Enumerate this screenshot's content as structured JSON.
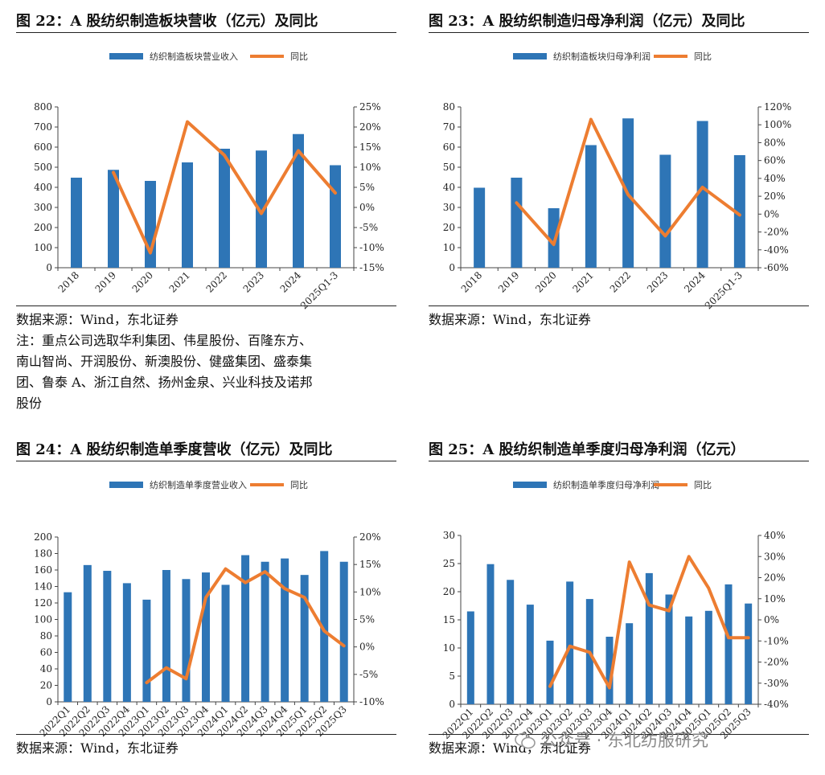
{
  "colors": {
    "bar": "#2E75B6",
    "line": "#ED7D31",
    "axis": "#444444"
  },
  "watermark": "公众号 · 东北纺服研究",
  "panels": [
    {
      "title": "图 22：A 股纺织制造板块营收（亿元）及同比",
      "source": "数据来源：Wind，东北证券",
      "note": [
        "注：重点公司选取华利集团、伟星股份、百隆东方、",
        "南山智尚、开润股份、新澳股份、健盛集团、盛泰集",
        "团、鲁泰 A、浙江自然、扬州金泉、兴业科技及诺邦",
        "股份"
      ],
      "chart_data": {
        "type": "bar+line",
        "categories": [
          "2018",
          "2019",
          "2020",
          "2021",
          "2022",
          "2023",
          "2024",
          "2025Q1-3"
        ],
        "bar_series": {
          "name": "纺织制造板块营业收入",
          "values": [
            448,
            487,
            432,
            524,
            592,
            583,
            665,
            510
          ]
        },
        "line_series": {
          "name": "同比",
          "values": [
            null,
            8.7,
            -11.3,
            21.3,
            13.0,
            -1.5,
            14.1,
            3.6
          ]
        },
        "y_left": {
          "min": 0,
          "max": 800,
          "step": 100,
          "ticks": [
            "0",
            "100",
            "200",
            "300",
            "400",
            "500",
            "600",
            "700",
            "800"
          ]
        },
        "y_right": {
          "min": -15,
          "max": 25,
          "step": 5,
          "ticks": [
            "-15%",
            "-10%",
            "-5%",
            "0%",
            "5%",
            "10%",
            "15%",
            "20%",
            "25%"
          ]
        },
        "x_rotated": true
      }
    },
    {
      "title": "图 23：A 股纺织制造归母净利润（亿元）及同比",
      "source": "数据来源：Wind，东北证券",
      "note": [],
      "chart_data": {
        "type": "bar+line",
        "categories": [
          "2018",
          "2019",
          "2020",
          "2021",
          "2022",
          "2023",
          "2024",
          "2025Q1-3"
        ],
        "bar_series": {
          "name": "纺织制造板块归母净利润",
          "values": [
            39.8,
            44.8,
            29.6,
            61.0,
            74.3,
            56.2,
            73.0,
            56.0
          ]
        },
        "line_series": {
          "name": "同比",
          "values": [
            null,
            12.6,
            -34.0,
            106.0,
            21.8,
            -24.4,
            30.0,
            -1.0
          ]
        },
        "y_left": {
          "min": 0,
          "max": 80,
          "step": 10,
          "ticks": [
            "0",
            "10",
            "20",
            "30",
            "40",
            "50",
            "60",
            "70",
            "80"
          ]
        },
        "y_right": {
          "min": -60,
          "max": 120,
          "step": 20,
          "ticks": [
            "-60%",
            "-40%",
            "-20%",
            "0%",
            "20%",
            "40%",
            "60%",
            "80%",
            "100%",
            "120%"
          ]
        },
        "x_rotated": true
      }
    },
    {
      "title": "图 24：A 股纺织制造单季度营收（亿元）及同比",
      "source": "数据来源：Wind，东北证券",
      "note": [],
      "chart_data": {
        "type": "bar+line",
        "categories": [
          "2022Q1",
          "2022Q2",
          "2022Q3",
          "2022Q4",
          "2023Q1",
          "2023Q2",
          "2023Q3",
          "2023Q4",
          "2024Q1",
          "2024Q2",
          "2024Q3",
          "2024Q4",
          "2025Q1",
          "2025Q2",
          "2025Q3"
        ],
        "bar_series": {
          "name": "纺织制造单季度营业收入",
          "values": [
            133,
            166,
            159,
            144,
            124,
            160,
            149,
            157,
            142,
            178,
            170,
            174,
            154,
            183,
            170
          ]
        },
        "line_series": {
          "name": "同比",
          "values": [
            null,
            null,
            null,
            null,
            -6.5,
            -3.8,
            -5.8,
            9.0,
            14.2,
            11.7,
            13.7,
            10.6,
            9.0,
            2.9,
            0.2
          ]
        },
        "y_left": {
          "min": 0,
          "max": 200,
          "step": 20,
          "ticks": [
            "0",
            "20",
            "40",
            "60",
            "80",
            "100",
            "120",
            "140",
            "160",
            "180",
            "200"
          ]
        },
        "y_right": {
          "min": -10,
          "max": 20,
          "step": 5,
          "ticks": [
            "-10%",
            "-5%",
            "0%",
            "5%",
            "10%",
            "15%",
            "20%"
          ]
        },
        "x_rotated": true
      }
    },
    {
      "title": "图 25：A 股纺织制造单季度归母净利润（亿元）",
      "source": "数据来源：Wind，东北证券",
      "note": [],
      "chart_data": {
        "type": "bar+line",
        "categories": [
          "2022Q1",
          "2022Q2",
          "2022Q3",
          "2022Q4",
          "2023Q1",
          "2023Q2",
          "2023Q3",
          "2023Q4",
          "2024Q1",
          "2024Q2",
          "2024Q3",
          "2024Q4",
          "2025Q1",
          "2025Q2",
          "2025Q3"
        ],
        "bar_series": {
          "name": "纺织制造单季度归母净利润",
          "values": [
            16.5,
            24.9,
            22.1,
            17.7,
            11.3,
            21.8,
            18.7,
            12.0,
            14.4,
            23.3,
            19.5,
            15.6,
            16.6,
            21.3,
            17.9
          ]
        },
        "line_series": {
          "name": "同比",
          "values": [
            null,
            null,
            null,
            null,
            -31.5,
            -12.5,
            -15.4,
            -32.2,
            27.4,
            7.0,
            4.3,
            30.0,
            15.0,
            -8.5,
            -8.5
          ]
        },
        "y_left": {
          "min": 0,
          "max": 30,
          "step": 5,
          "ticks": [
            "0",
            "5",
            "10",
            "15",
            "20",
            "25",
            "30"
          ]
        },
        "y_right": {
          "min": -40,
          "max": 40,
          "step": 10,
          "ticks": [
            "-40%",
            "-30%",
            "-20%",
            "-10%",
            "0%",
            "10%",
            "20%",
            "30%",
            "40%"
          ]
        },
        "x_rotated": true
      }
    }
  ]
}
